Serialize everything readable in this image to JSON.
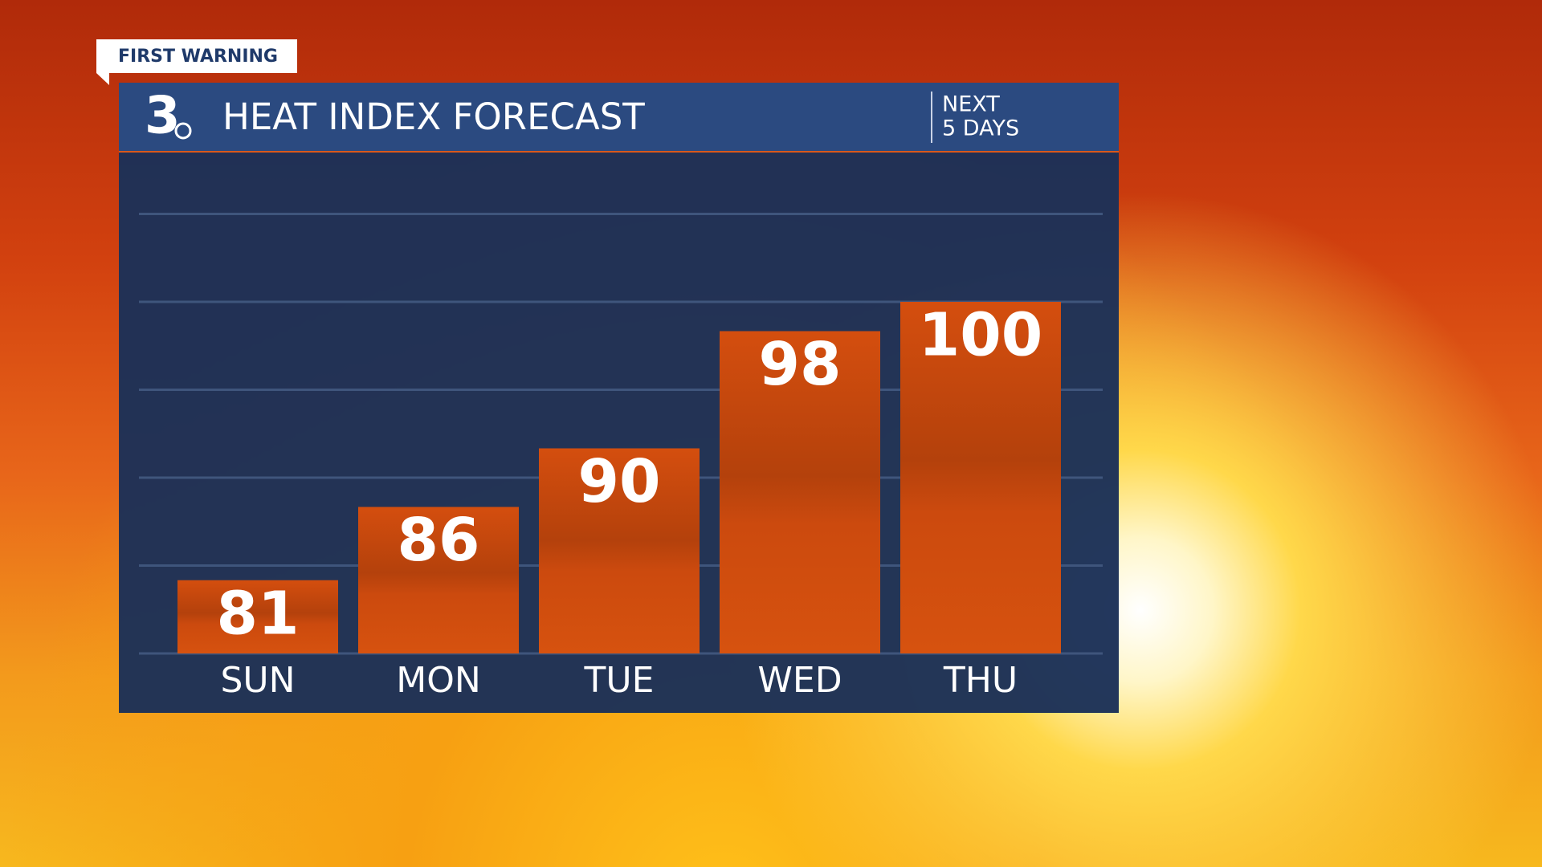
{
  "chart_data": {
    "type": "bar",
    "title": "HEAT INDEX FORECAST",
    "subtitle": [
      "NEXT",
      "5 DAYS"
    ],
    "tag": "FIRST WARNING",
    "logo": "3",
    "categories": [
      "SUN",
      "MON",
      "TUE",
      "WED",
      "THU"
    ],
    "values": [
      81,
      86,
      90,
      98,
      100
    ],
    "color": "#d04c0c",
    "ylim": [
      76,
      110
    ],
    "yticks": [
      76,
      82,
      88,
      94,
      100,
      106
    ],
    "grid": true,
    "tick_labels": false
  }
}
